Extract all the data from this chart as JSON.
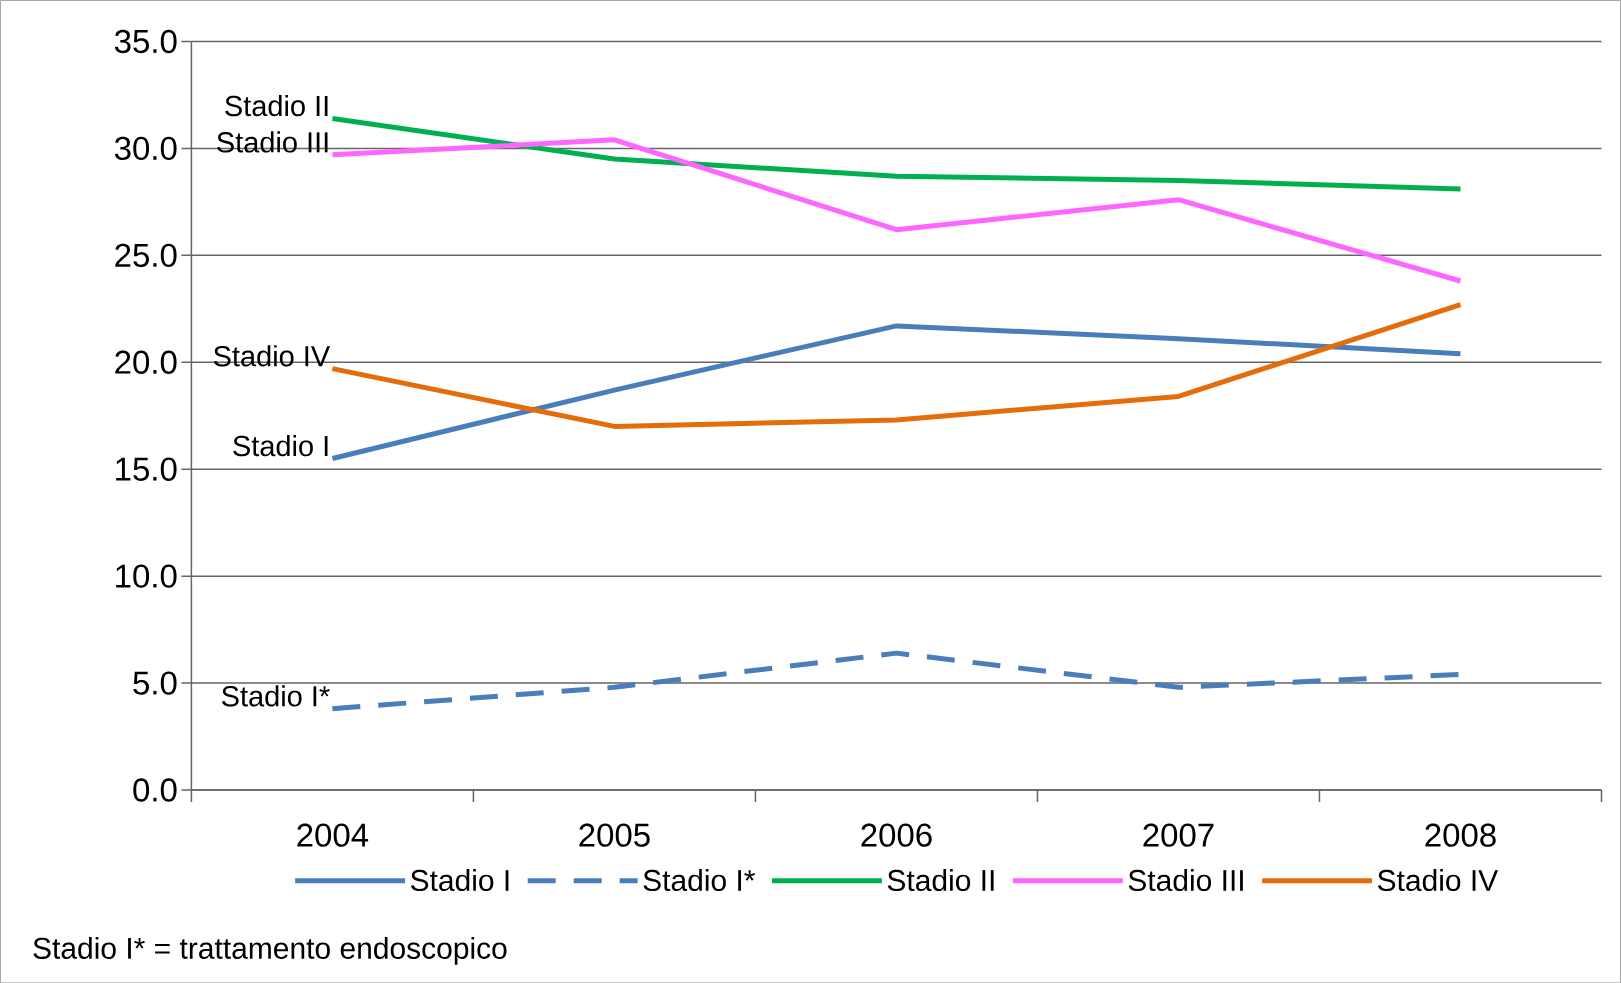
{
  "chart_data": {
    "type": "line",
    "categories": [
      "2004",
      "2005",
      "2006",
      "2007",
      "2008"
    ],
    "series": [
      {
        "name": "Stadio I",
        "color": "#4a7ebb",
        "line_style": "solid",
        "values": [
          15.5,
          18.7,
          21.7,
          21.1,
          20.4
        ]
      },
      {
        "name": "Stadio I*",
        "color": "#4a7ebb",
        "line_style": "dashed",
        "values": [
          3.8,
          4.8,
          6.4,
          4.8,
          5.4
        ]
      },
      {
        "name": "Stadio II",
        "color": "#00b050",
        "line_style": "solid",
        "values": [
          31.4,
          29.5,
          28.7,
          28.5,
          28.1
        ]
      },
      {
        "name": "Stadio III",
        "color": "#ff66ff",
        "line_style": "solid",
        "values": [
          29.7,
          30.4,
          26.2,
          27.6,
          23.8
        ]
      },
      {
        "name": "Stadio IV",
        "color": "#e46c0a",
        "line_style": "solid",
        "values": [
          19.7,
          17.0,
          17.3,
          18.4,
          22.7
        ]
      }
    ],
    "ylim": [
      0,
      35
    ],
    "yticks": [
      {
        "value": 0,
        "label": "0.0"
      },
      {
        "value": 5,
        "label": "5.0"
      },
      {
        "value": 10,
        "label": "10.0"
      },
      {
        "value": 15,
        "label": "15.0"
      },
      {
        "value": 20,
        "label": "20.0"
      },
      {
        "value": 25,
        "label": "25.0"
      },
      {
        "value": 30,
        "label": "30.0"
      },
      {
        "value": 35,
        "label": "35.0"
      }
    ],
    "grid": "y",
    "legend": "bottom",
    "annotations": [
      {
        "text": "Stadio II",
        "x": "2004",
        "y": 31.4
      },
      {
        "text": "Stadio III",
        "x": "2004",
        "y": 29.7
      },
      {
        "text": "Stadio IV",
        "x": "2004",
        "y": 19.7
      },
      {
        "text": "Stadio I",
        "x": "2004",
        "y": 15.5
      },
      {
        "text": "Stadio I*",
        "x": "2004",
        "y": 3.8
      },
      "Stadio I* = trattamento endoscopico"
    ]
  }
}
